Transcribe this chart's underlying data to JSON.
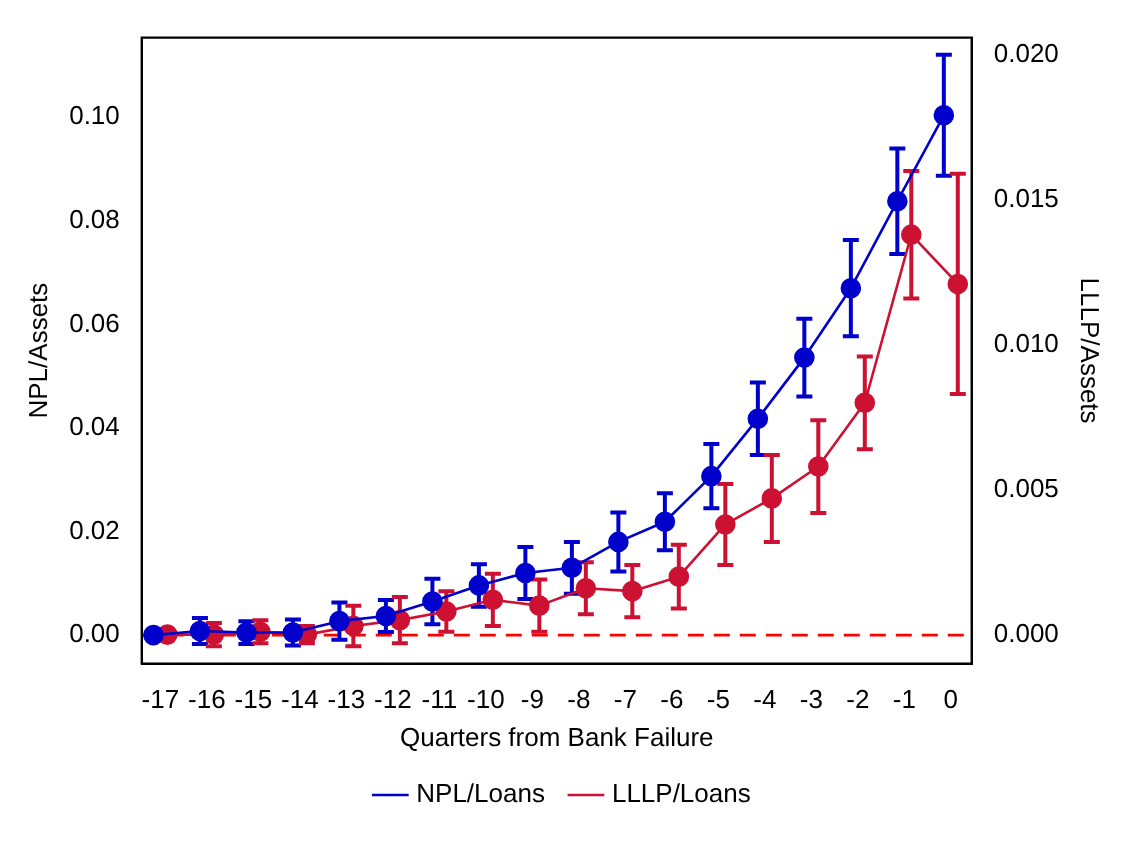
{
  "chart_data": {
    "type": "line",
    "xlabel": "Quarters from Bank Failure",
    "ylabel": "NPL/Assets",
    "y2label": "LLLP/Assets",
    "xlim": [
      -17.4,
      0.45
    ],
    "xticks": [
      -17,
      -16,
      -15,
      -14,
      -13,
      -12,
      -11,
      -10,
      -9,
      -8,
      -7,
      -6,
      -5,
      -4,
      -3,
      -2,
      -1,
      0
    ],
    "ylim": [
      -0.0055,
      0.1154
    ],
    "yticks": [
      {
        "value": 0,
        "label": "0.00"
      },
      {
        "value": 0.02,
        "label": "0.02"
      },
      {
        "value": 0.04,
        "label": "0.04"
      },
      {
        "value": 0.06,
        "label": "0.06"
      },
      {
        "value": 0.08,
        "label": "0.08"
      },
      {
        "value": 0.1,
        "label": "0.10"
      }
    ],
    "y2lim": [
      -0.001,
      0.0206
    ],
    "y2ticks": [
      {
        "value": 0,
        "label": "0.000"
      },
      {
        "value": 0.005,
        "label": "0.005"
      },
      {
        "value": 0.01,
        "label": "0.010"
      },
      {
        "value": 0.015,
        "label": "0.015"
      },
      {
        "value": 0.02,
        "label": "0.020"
      }
    ],
    "series": [
      {
        "name": "NPL/Loans",
        "color": "#0000cc",
        "x": [
          -17.15,
          -16.15,
          -15.15,
          -14.15,
          -13.15,
          -12.15,
          -11.15,
          -10.15,
          -9.15,
          -8.15,
          -7.15,
          -6.15,
          -5.15,
          -4.15,
          -3.15,
          -2.15,
          -1.15,
          -0.15
        ],
        "values": [
          0,
          0.0008,
          0.0005,
          0.0005,
          0.0027,
          0.0037,
          0.0065,
          0.0096,
          0.012,
          0.013,
          0.018,
          0.0219,
          0.0307,
          0.0418,
          0.0536,
          0.067,
          0.0838,
          0.1004
        ],
        "errors": [
          null,
          0.0025,
          0.0022,
          0.0025,
          0.0036,
          0.0031,
          0.0044,
          0.0041,
          0.005,
          0.005,
          0.0057,
          0.0055,
          0.0062,
          0.007,
          0.0075,
          0.0093,
          0.0102,
          0.0117
        ]
      },
      {
        "name": "LLLP/Loans",
        "color": "#cc1133",
        "axis": "y2",
        "x": [
          -16.85,
          -15.85,
          -14.85,
          -13.85,
          -12.85,
          -11.85,
          -10.85,
          -9.85,
          -8.85,
          -7.85,
          -6.85,
          -5.85,
          -4.85,
          -3.85,
          -2.85,
          -1.85,
          -0.85,
          0.15
        ],
        "values": [
          0,
          0,
          0.0001,
          0,
          0.0003,
          0.0005,
          0.0008,
          0.0012,
          0.001,
          0.0016,
          0.0015,
          0.002,
          0.0038,
          0.0047,
          0.0058,
          0.008,
          0.0138,
          0.0121
        ],
        "errors": [
          null,
          0.0004,
          0.0004,
          0.0003,
          0.0007,
          0.0008,
          0.0007,
          0.0009,
          0.0009,
          0.0009,
          0.0009,
          0.0011,
          0.0014,
          0.0015,
          0.0016,
          0.0016,
          0.0022,
          0.0038
        ]
      }
    ],
    "ref_lines": [
      {
        "axis": "y",
        "value": 0,
        "color": "#ff0000",
        "line_style": "dashed"
      }
    ],
    "marker": "circle",
    "line_style": "solid",
    "grid": false,
    "legend": "bottom"
  }
}
